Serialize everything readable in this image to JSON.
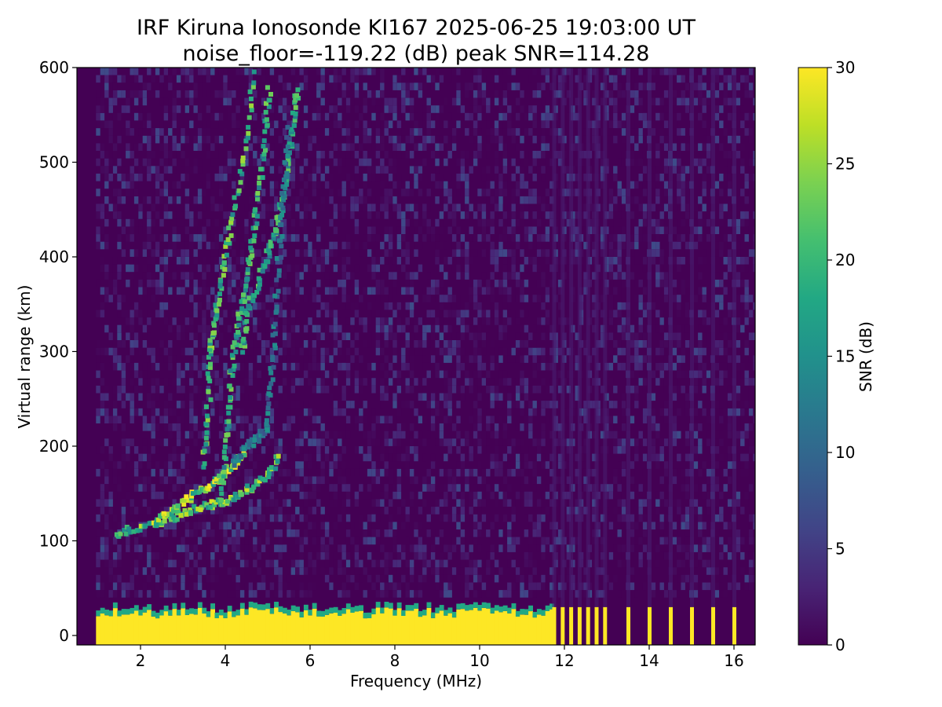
{
  "chart_data": {
    "type": "heatmap",
    "title": "IRF Kiruna Ionosonde KI167 2025-06-25 19:03:00  UT",
    "subtitle": "noise_floor=-119.22 (dB) peak SNR=114.28",
    "xlabel": "Frequency (MHz)",
    "ylabel": "Virtual range (km)",
    "xlim": [
      0.5,
      16.5
    ],
    "ylim": [
      -10,
      600
    ],
    "x_ticks": [
      2,
      4,
      6,
      8,
      10,
      12,
      14,
      16
    ],
    "y_ticks": [
      0,
      100,
      200,
      300,
      400,
      500,
      600
    ],
    "colorbar": {
      "label": "SNR (dB)",
      "colormap": "viridis",
      "range": [
        0,
        30
      ],
      "ticks": [
        0,
        5,
        10,
        15,
        20,
        25,
        30
      ]
    },
    "data_frequency_range_mhz": [
      0.95,
      16.5
    ],
    "ground_echo": {
      "range_km": [
        -10,
        30
      ],
      "continuous_until_mhz": 11.65,
      "discrete_sweep_frequencies_mhz": [
        11.75,
        11.95,
        12.15,
        12.35,
        12.55,
        12.75,
        12.95,
        13.5,
        14.0,
        14.5,
        15.0,
        15.5,
        16.0
      ]
    },
    "echo_traces": [
      {
        "points": [
          [
            1.4,
            107
          ],
          [
            2.0,
            115
          ],
          [
            2.6,
            122
          ],
          [
            3.0,
            128
          ],
          [
            3.4,
            135
          ],
          [
            3.8,
            140
          ],
          [
            4.2,
            146
          ],
          [
            4.6,
            155
          ],
          [
            5.0,
            170
          ],
          [
            5.3,
            190
          ]
        ],
        "snr": 26
      },
      {
        "points": [
          [
            2.3,
            120
          ],
          [
            2.7,
            130
          ],
          [
            3.0,
            140
          ],
          [
            3.3,
            150
          ],
          [
            3.6,
            158
          ],
          [
            3.9,
            168
          ],
          [
            4.2,
            180
          ],
          [
            4.5,
            195
          ]
        ],
        "snr": 29
      },
      {
        "points": [
          [
            3.5,
            180
          ],
          [
            3.6,
            240
          ],
          [
            3.65,
            300
          ],
          [
            3.7,
            320
          ],
          [
            3.85,
            360
          ],
          [
            4.0,
            400
          ],
          [
            4.2,
            450
          ],
          [
            4.5,
            520
          ],
          [
            4.7,
            600
          ]
        ],
        "snr": 24
      },
      {
        "points": [
          [
            3.9,
            140
          ],
          [
            4.0,
            200
          ],
          [
            4.1,
            250
          ],
          [
            4.2,
            300
          ],
          [
            4.35,
            340
          ],
          [
            4.5,
            380
          ],
          [
            4.65,
            420
          ],
          [
            4.8,
            470
          ],
          [
            4.95,
            530
          ],
          [
            5.05,
            580
          ]
        ],
        "snr": 22
      },
      {
        "points": [
          [
            4.4,
            300
          ],
          [
            4.5,
            340
          ],
          [
            4.75,
            370
          ],
          [
            5.0,
            400
          ],
          [
            5.2,
            430
          ],
          [
            5.35,
            460
          ],
          [
            5.5,
            500
          ],
          [
            5.6,
            540
          ],
          [
            5.7,
            580
          ]
        ],
        "snr": 22
      },
      {
        "points": [
          [
            4.2,
            180
          ],
          [
            4.5,
            200
          ],
          [
            4.8,
            210
          ],
          [
            5.0,
            220
          ],
          [
            5.1,
            280
          ],
          [
            5.2,
            350
          ],
          [
            5.3,
            420
          ],
          [
            5.4,
            480
          ],
          [
            5.5,
            540
          ]
        ],
        "snr": 14
      }
    ]
  }
}
